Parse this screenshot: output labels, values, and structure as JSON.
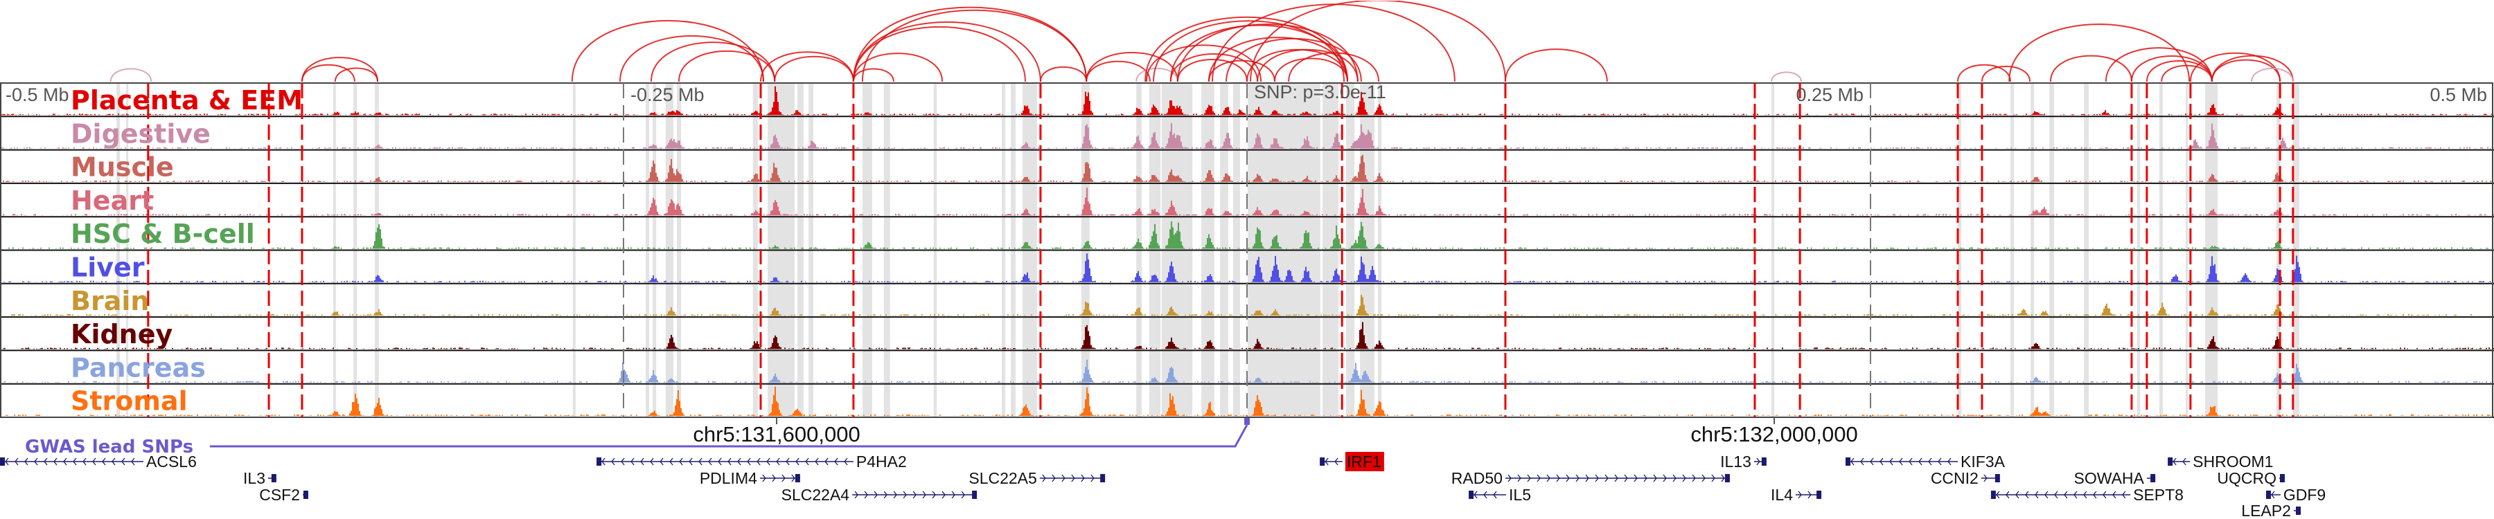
{
  "axis": {
    "left": "-0.5 Mb",
    "left_mid": "-0.25 Mb",
    "center": "SNP: p=3.0e-11",
    "right_mid": "0.25 Mb",
    "right": "0.5 Mb"
  },
  "coords": [
    {
      "label": "chr5:131,600,000",
      "kb": -188.6
    },
    {
      "label": "chr5:132,000,000",
      "kb": 211.4
    }
  ],
  "gwas": {
    "label": "GWAS lead SNPs",
    "color": "#6a5acd"
  },
  "tracks": [
    {
      "name": "Placenta & EEM",
      "color": "#e00000",
      "peaks": [
        [
          -365.6,
          0.1
        ],
        [
          -357.8,
          0.12
        ],
        [
          -348.6,
          0.12
        ],
        [
          -238.3,
          0.12
        ],
        [
          -231.1,
          0.15
        ],
        [
          -228.3,
          0.15
        ],
        [
          -197.2,
          0.2
        ],
        [
          -189.4,
          0.95
        ],
        [
          -180.6,
          0.2
        ],
        [
          -152.2,
          0.12
        ],
        [
          -88.9,
          0.4
        ],
        [
          -64.4,
          0.95
        ],
        [
          -43.9,
          0.35
        ],
        [
          -37.5,
          0.45
        ],
        [
          -30.6,
          0.6
        ],
        [
          -27.8,
          0.4
        ],
        [
          -15.3,
          0.6
        ],
        [
          -8.3,
          0.4
        ],
        [
          -2.8,
          0.2
        ],
        [
          4.2,
          0.3
        ],
        [
          11.1,
          0.2
        ],
        [
          23.6,
          0.15
        ],
        [
          35.6,
          0.15
        ],
        [
          45.8,
          1.0
        ],
        [
          52.8,
          0.45
        ],
        [
          386.9,
          0.4
        ],
        [
          413,
          0.3
        ],
        [
          316,
          0.15
        ],
        [
          344,
          0.12
        ]
      ]
    },
    {
      "name": "Digestive",
      "color": "#c98aa8",
      "peaks": [
        [
          -348.6,
          0.15
        ],
        [
          -238.3,
          0.2
        ],
        [
          -231.1,
          0.5
        ],
        [
          -228.3,
          0.3
        ],
        [
          -189.4,
          0.6
        ],
        [
          -174.4,
          0.35
        ],
        [
          -88.9,
          0.2
        ],
        [
          -64.4,
          1.0
        ],
        [
          -43.9,
          0.5
        ],
        [
          -37.5,
          0.6
        ],
        [
          -30.6,
          1.0
        ],
        [
          -27.8,
          0.6
        ],
        [
          -15.3,
          0.4
        ],
        [
          -8.3,
          0.7
        ],
        [
          4.2,
          0.6
        ],
        [
          11.1,
          0.5
        ],
        [
          23.6,
          0.5
        ],
        [
          35.6,
          0.6
        ],
        [
          43.1,
          0.3
        ],
        [
          45.8,
          1.0
        ],
        [
          48.6,
          0.9
        ],
        [
          380,
          0.35
        ],
        [
          386.9,
          0.9
        ],
        [
          415,
          0.4
        ]
      ]
    },
    {
      "name": "Muscle",
      "color": "#c8645a",
      "peaks": [
        [
          -348.6,
          0.15
        ],
        [
          -238.3,
          0.8
        ],
        [
          -231.1,
          0.8
        ],
        [
          -228.3,
          0.5
        ],
        [
          -197.2,
          0.3
        ],
        [
          -189.4,
          0.8
        ],
        [
          -88.9,
          0.2
        ],
        [
          -64.4,
          1.0
        ],
        [
          -43.9,
          0.3
        ],
        [
          -37.5,
          0.3
        ],
        [
          -30.6,
          0.5
        ],
        [
          -27.8,
          0.3
        ],
        [
          -15.3,
          0.5
        ],
        [
          -8.3,
          0.4
        ],
        [
          4.2,
          0.35
        ],
        [
          11.1,
          0.2
        ],
        [
          23.6,
          0.2
        ],
        [
          35.6,
          0.2
        ],
        [
          43.1,
          0.2
        ],
        [
          45.8,
          1.0
        ],
        [
          52.8,
          0.3
        ],
        [
          316,
          0.25
        ],
        [
          386.9,
          0.3
        ],
        [
          413,
          0.35
        ]
      ]
    },
    {
      "name": "Heart",
      "color": "#d8687a",
      "peaks": [
        [
          -348.6,
          0.1
        ],
        [
          -238.3,
          0.75
        ],
        [
          -231.1,
          0.8
        ],
        [
          -228.3,
          0.4
        ],
        [
          -197.2,
          0.2
        ],
        [
          -189.4,
          0.7
        ],
        [
          -88.9,
          0.25
        ],
        [
          -64.4,
          1.0
        ],
        [
          -43.9,
          0.3
        ],
        [
          -37.5,
          0.3
        ],
        [
          -30.6,
          0.6
        ],
        [
          -15.3,
          0.3
        ],
        [
          -8.3,
          0.2
        ],
        [
          4.2,
          0.3
        ],
        [
          11.1,
          0.3
        ],
        [
          23.6,
          0.2
        ],
        [
          45.8,
          1.0
        ],
        [
          52.8,
          0.3
        ],
        [
          316,
          0.25
        ],
        [
          319.4,
          0.3
        ],
        [
          386.9,
          0.25
        ],
        [
          413,
          0.3
        ]
      ]
    },
    {
      "name": "HSC & B-cell",
      "color": "#55a455",
      "peaks": [
        [
          -348.6,
          1.0
        ],
        [
          -365.6,
          0.1
        ],
        [
          -189.4,
          0.1
        ],
        [
          -152.2,
          0.3
        ],
        [
          -88.9,
          0.25
        ],
        [
          -64.4,
          0.3
        ],
        [
          -43.9,
          0.35
        ],
        [
          -37.5,
          1.0
        ],
        [
          -30.6,
          1.0
        ],
        [
          -27.8,
          0.9
        ],
        [
          -15.3,
          0.5
        ],
        [
          4.2,
          1.0
        ],
        [
          11.1,
          0.7
        ],
        [
          23.6,
          0.9
        ],
        [
          35.6,
          0.8
        ],
        [
          43.1,
          0.3
        ],
        [
          45.8,
          1.0
        ],
        [
          52.8,
          0.2
        ],
        [
          386.9,
          0.1
        ],
        [
          413,
          0.3
        ]
      ]
    },
    {
      "name": "Liver",
      "color": "#5050e6",
      "peaks": [
        [
          -348.6,
          0.3
        ],
        [
          -238.3,
          0.2
        ],
        [
          -189.4,
          0.2
        ],
        [
          -88.9,
          0.4
        ],
        [
          -64.4,
          1.0
        ],
        [
          -43.9,
          0.4
        ],
        [
          -37.5,
          0.4
        ],
        [
          -30.6,
          1.0
        ],
        [
          -15.3,
          0.3
        ],
        [
          4.2,
          1.0
        ],
        [
          11.1,
          1.0
        ],
        [
          16.7,
          0.5
        ],
        [
          23.6,
          0.6
        ],
        [
          35.6,
          0.5
        ],
        [
          45.8,
          1.0
        ],
        [
          50,
          0.6
        ],
        [
          372,
          0.3
        ],
        [
          386.9,
          1.0
        ],
        [
          400,
          0.4
        ],
        [
          413,
          0.5
        ],
        [
          420.8,
          1.0
        ]
      ]
    },
    {
      "name": "Brain",
      "color": "#c89632",
      "peaks": [
        [
          -348.6,
          0.2
        ],
        [
          -365.6,
          0.15
        ],
        [
          -231.1,
          0.3
        ],
        [
          -189.4,
          0.35
        ],
        [
          -64.4,
          0.6
        ],
        [
          -43.9,
          0.3
        ],
        [
          -30.6,
          0.4
        ],
        [
          -15.3,
          0.2
        ],
        [
          4.2,
          0.3
        ],
        [
          11.1,
          0.2
        ],
        [
          45.8,
          0.7
        ],
        [
          311,
          0.3
        ],
        [
          319.4,
          0.2
        ],
        [
          344.4,
          0.5
        ],
        [
          366.7,
          0.45
        ],
        [
          386.9,
          0.3
        ],
        [
          413,
          0.4
        ]
      ]
    },
    {
      "name": "Kidney",
      "color": "#640000",
      "peaks": [
        [
          -231.1,
          0.5
        ],
        [
          -197.2,
          0.35
        ],
        [
          -189.4,
          0.6
        ],
        [
          -64.4,
          1.0
        ],
        [
          -43.9,
          0.15
        ],
        [
          -30.6,
          0.45
        ],
        [
          -15.3,
          0.45
        ],
        [
          4.2,
          0.35
        ],
        [
          45.8,
          1.0
        ],
        [
          52.8,
          0.3
        ],
        [
          316,
          0.3
        ],
        [
          386.9,
          0.5
        ],
        [
          413,
          0.5
        ]
      ]
    },
    {
      "name": "Pancreas",
      "color": "#8aa4e0",
      "peaks": [
        [
          -250,
          0.8
        ],
        [
          -238.3,
          0.5
        ],
        [
          -231.1,
          0.15
        ],
        [
          -189.4,
          0.3
        ],
        [
          -64.4,
          0.8
        ],
        [
          -37.5,
          0.2
        ],
        [
          -30.6,
          0.7
        ],
        [
          4.2,
          0.2
        ],
        [
          43.1,
          0.7
        ],
        [
          47,
          0.5
        ],
        [
          316,
          0.2
        ],
        [
          413,
          0.4
        ],
        [
          420.8,
          0.7
        ]
      ]
    },
    {
      "name": "Stromal",
      "color": "#ff7010",
      "peaks": [
        [
          -365.6,
          0.2
        ],
        [
          -357.8,
          0.95
        ],
        [
          -348.6,
          0.8
        ],
        [
          -238.3,
          0.2
        ],
        [
          -228.3,
          0.9
        ],
        [
          -189.4,
          1.0
        ],
        [
          -180.6,
          0.4
        ],
        [
          -88.9,
          0.5
        ],
        [
          -64.4,
          1.0
        ],
        [
          -30.6,
          0.95
        ],
        [
          -15.3,
          0.5
        ],
        [
          4.2,
          1.0
        ],
        [
          45.8,
          0.95
        ],
        [
          52.8,
          0.8
        ],
        [
          316,
          0.35
        ],
        [
          319.4,
          0.2
        ],
        [
          386.9,
          0.5
        ]
      ]
    }
  ],
  "snps_kb": [
    -440.6,
    -392.2,
    -378.9,
    -195,
    -157.8,
    -82.8,
    38.1,
    103.6,
    203.6,
    221.7,
    285,
    294.7,
    354.7,
    360.8,
    378.3,
    414.2,
    419.4
  ],
  "snp_color": "#ee0000",
  "highlights_kb": [
    [
      -453.3,
      -451.9
    ],
    [
      -449.4,
      -448.6
    ],
    [
      -366.4,
      -365.3
    ],
    [
      -358.3,
      -356.9
    ],
    [
      -349.7,
      -348.1
    ],
    [
      -270.3,
      -269.2
    ],
    [
      -241.1,
      -239.7
    ],
    [
      -238.3,
      -236.9
    ],
    [
      -233.1,
      -230
    ],
    [
      -228.6,
      -226.9
    ],
    [
      -198.1,
      -196.1
    ],
    [
      -192.2,
      -181.4
    ],
    [
      -180.3,
      -177.8
    ],
    [
      -175.8,
      -173.9
    ],
    [
      -154.2,
      -150.3
    ],
    [
      -145.6,
      -143.1
    ],
    [
      -125.6,
      -124.4
    ],
    [
      -98.3,
      -96.9
    ],
    [
      -94.7,
      -92.8
    ],
    [
      -90,
      -84.2
    ],
    [
      -66.4,
      -63.1
    ],
    [
      -44.4,
      -42.2
    ],
    [
      -39.2,
      -34.7
    ],
    [
      -34.2,
      -21.9
    ],
    [
      -18.3,
      -13.1
    ],
    [
      -10.8,
      -7.5
    ],
    [
      -5.6,
      -2.8
    ],
    [
      0.3,
      29.4
    ],
    [
      30.3,
      36.7
    ],
    [
      39.7,
      43.1
    ],
    [
      45.3,
      51.1
    ],
    [
      52.5,
      53.9
    ],
    [
      210.3,
      211.4
    ],
    [
      285,
      286.4
    ],
    [
      306.1,
      307.5
    ],
    [
      314.2,
      315.6
    ],
    [
      321.7,
      323.6
    ],
    [
      335.6,
      337.5
    ],
    [
      356.9,
      358.1
    ],
    [
      365.8,
      367.2
    ],
    [
      376.4,
      377.2
    ],
    [
      384.2,
      389.2
    ],
    [
      412.8,
      414.4
    ],
    [
      419.4,
      421.9
    ]
  ],
  "arcs_kb": [
    [
      -455.6,
      -439.4,
      "pink"
    ],
    [
      -378.9,
      -348.6,
      "red"
    ],
    [
      -365.6,
      -348.6,
      "red"
    ],
    [
      -378.9,
      -357.8,
      "red"
    ],
    [
      -270.6,
      -193.9,
      "red"
    ],
    [
      -251.4,
      -193.9,
      "red"
    ],
    [
      -238.9,
      -189.4,
      "red"
    ],
    [
      -227.8,
      -189.4,
      "red"
    ],
    [
      -195,
      -157.8,
      "red"
    ],
    [
      -157.8,
      -88.9,
      "red"
    ],
    [
      -157.8,
      -64.4,
      "red"
    ],
    [
      -189.4,
      -157.8,
      "red"
    ],
    [
      -157.8,
      -82.8,
      "red"
    ],
    [
      -157.8,
      -122.2,
      "red"
    ],
    [
      -157.8,
      -141.7,
      "red"
    ],
    [
      -154.2,
      -64.4,
      "red"
    ],
    [
      -82.8,
      -64.4,
      "red"
    ],
    [
      -64.4,
      -38.9,
      "red"
    ],
    [
      -64.4,
      -27.8,
      "red"
    ],
    [
      -44.4,
      -27.8,
      "pink"
    ],
    [
      -40.8,
      40.3,
      "red"
    ],
    [
      -37.5,
      38.9,
      "red"
    ],
    [
      -30.6,
      40.3,
      "red"
    ],
    [
      -27.8,
      44.4,
      "red"
    ],
    [
      -15.3,
      40.3,
      "red"
    ],
    [
      -8.3,
      45.8,
      "red"
    ],
    [
      0,
      40.3,
      "red"
    ],
    [
      4.2,
      44.4,
      "red"
    ],
    [
      11.1,
      40.3,
      "red"
    ],
    [
      -40.3,
      5.6,
      "red"
    ],
    [
      -30.6,
      4.2,
      "red"
    ],
    [
      -15.3,
      11.1,
      "red"
    ],
    [
      -27.8,
      0,
      "red"
    ],
    [
      1.4,
      103.6,
      "red"
    ],
    [
      -13.9,
      83.3,
      "red"
    ],
    [
      16.7,
      52.8,
      "red"
    ],
    [
      103.6,
      144.4,
      "red"
    ],
    [
      210.3,
      222.2,
      "pink"
    ],
    [
      285,
      306.1,
      "red"
    ],
    [
      294.7,
      313.9,
      "red"
    ],
    [
      322.2,
      354.7,
      "red"
    ],
    [
      354.7,
      386.9,
      "red"
    ],
    [
      360.8,
      386.9,
      "red"
    ],
    [
      378.3,
      414.2,
      "red"
    ],
    [
      386.9,
      419.4,
      "red"
    ],
    [
      366.7,
      386.9,
      "red"
    ],
    [
      344.4,
      386.9,
      "red"
    ],
    [
      386.9,
      414.2,
      "red"
    ],
    [
      402.8,
      419.4,
      "pink"
    ],
    [
      305.6,
      377.8,
      "red"
    ]
  ],
  "genes": [
    {
      "name": "ACSL6",
      "start": -500,
      "end": -442.5,
      "strand": "-",
      "row": 0,
      "label": "right"
    },
    {
      "name": "P4HA2",
      "start": -260.8,
      "end": -157.8,
      "strand": "-",
      "row": 0,
      "label": "right"
    },
    {
      "name": "IRF1",
      "start": 29.2,
      "end": 38.3,
      "strand": "-",
      "row": 0,
      "label": "right",
      "highlight": "#e00000"
    },
    {
      "name": "IL13",
      "start": 203.3,
      "end": 208.3,
      "strand": "+",
      "row": 0,
      "label": "left"
    },
    {
      "name": "KIF3A",
      "start": 240,
      "end": 285,
      "strand": "-",
      "row": 0,
      "label": "right"
    },
    {
      "name": "SHROOM1",
      "start": 369.2,
      "end": 378.1,
      "strand": "-",
      "row": 0,
      "label": "right"
    },
    {
      "name": "IL3",
      "start": -392.5,
      "end": -389.2,
      "strand": "+",
      "row": 1,
      "label": "left"
    },
    {
      "name": "PDLIM4",
      "start": -195.3,
      "end": -179.2,
      "strand": "+",
      "row": 1,
      "label": "left"
    },
    {
      "name": "SLC22A5",
      "start": -83.1,
      "end": -56.9,
      "strand": "+",
      "row": 1,
      "label": "left"
    },
    {
      "name": "RAD50",
      "start": 103.6,
      "end": 193.6,
      "strand": "+",
      "row": 1,
      "label": "left"
    },
    {
      "name": "CCNI2",
      "start": 294.4,
      "end": 301.9,
      "strand": "+",
      "row": 1,
      "label": "left"
    },
    {
      "name": "SOWAHA",
      "start": 360.8,
      "end": 364.2,
      "strand": "+",
      "row": 1,
      "label": "left"
    },
    {
      "name": "UQCRQ",
      "start": 413.9,
      "end": 416.1,
      "strand": "+",
      "row": 1,
      "label": "left"
    },
    {
      "name": "CSF2",
      "start": -378.6,
      "end": -376.4,
      "strand": "+",
      "row": 2,
      "label": "left"
    },
    {
      "name": "SLC22A4",
      "start": -158.3,
      "end": -108.3,
      "strand": "+",
      "row": 2,
      "label": "left"
    },
    {
      "name": "IL5",
      "start": 88.9,
      "end": 103.9,
      "strand": "-",
      "row": 2,
      "label": "right"
    },
    {
      "name": "IL4",
      "start": 220,
      "end": 230.3,
      "strand": "+",
      "row": 2,
      "label": "left"
    },
    {
      "name": "SEPT8",
      "start": 298.3,
      "end": 354.2,
      "strand": "-",
      "row": 2,
      "label": "right"
    },
    {
      "name": "GDF9",
      "start": 408.6,
      "end": 414.4,
      "strand": "-",
      "row": 2,
      "label": "right"
    },
    {
      "name": "LEAP2",
      "start": 419.7,
      "end": 422.5,
      "strand": "+",
      "row": 3,
      "label": "left"
    }
  ]
}
